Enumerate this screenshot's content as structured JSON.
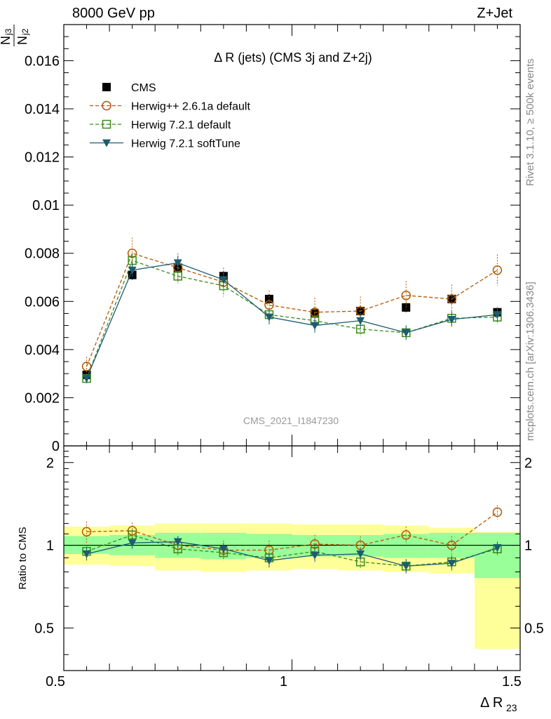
{
  "header": {
    "left": "8000 GeV pp",
    "right": "Z+Jet"
  },
  "side_labels": {
    "rivet": "Rivet 3.1.10, ≥ 500k events",
    "mcplots": "mcplots.cern.ch [arXiv:1306.3436]"
  },
  "chart_data": [
    {
      "panel": "main",
      "type": "scatter",
      "title": "Δ R (jets) (CMS 3j and Z+2j)",
      "ylabel": "N_j3 / N_j2",
      "watermark": "CMS_2021_I1847230",
      "xlim": [
        0.5,
        1.5
      ],
      "ylim": [
        0,
        0.0175
      ],
      "yticks": [
        "0",
        "0.002",
        "0.004",
        "0.006",
        "0.008",
        "0.01",
        "0.012",
        "0.014",
        "0.016"
      ],
      "ytick_values": [
        0,
        0.002,
        0.004,
        0.006,
        0.008,
        0.01,
        0.012,
        0.014,
        0.016
      ],
      "legend_position": "top-left",
      "x": [
        0.55,
        0.65,
        0.75,
        0.85,
        0.95,
        1.05,
        1.15,
        1.25,
        1.35,
        1.45
      ],
      "series": [
        {
          "name": "CMS",
          "marker": "square-filled",
          "color": "#000000",
          "line": "none",
          "values": [
            0.00295,
            0.0071,
            0.0074,
            0.00705,
            0.0061,
            0.0055,
            0.0056,
            0.00575,
            0.0061,
            0.00555
          ],
          "errors": [
            0.00015,
            0.0002,
            0.0002,
            0.0002,
            0.0002,
            0.0002,
            0.0002,
            0.0002,
            0.0002,
            0.0002
          ]
        },
        {
          "name": "Herwig++ 2.6.1a default",
          "marker": "circle-open",
          "color": "#b35900",
          "line": "dashed",
          "values": [
            0.0033,
            0.008,
            0.0074,
            0.0068,
            0.00585,
            0.00555,
            0.0056,
            0.00625,
            0.0061,
            0.0073
          ],
          "errors": [
            0.0004,
            0.00065,
            0.0006,
            0.0006,
            0.0006,
            0.0006,
            0.0006,
            0.0006,
            0.0006,
            0.00065
          ]
        },
        {
          "name": "Herwig 7.2.1 default",
          "marker": "square-open",
          "color": "#3a8a1a",
          "line": "dashed",
          "values": [
            0.0028,
            0.0077,
            0.00705,
            0.00665,
            0.00545,
            0.0052,
            0.00485,
            0.0047,
            0.0053,
            0.00535
          ],
          "errors": [
            0.0002,
            0.0003,
            0.0003,
            0.0003,
            0.0003,
            0.0003,
            0.0003,
            0.0003,
            0.0003,
            0.0003
          ]
        },
        {
          "name": "Herwig 7.2.1 softTune",
          "marker": "triangle-down-filled",
          "color": "#1d5c70",
          "line": "solid",
          "values": [
            0.0028,
            0.0073,
            0.0076,
            0.0069,
            0.00535,
            0.005,
            0.0052,
            0.0047,
            0.00525,
            0.00545
          ],
          "errors": [
            0.0002,
            0.0003,
            0.0003,
            0.0003,
            0.0003,
            0.0003,
            0.0003,
            0.0003,
            0.0003,
            0.0003
          ]
        }
      ]
    },
    {
      "panel": "ratio",
      "type": "scatter",
      "ylabel": "Ratio to CMS",
      "xlabel": "Δ R_23",
      "xlim": [
        0.5,
        1.5
      ],
      "ylim": [
        0.35,
        2.3
      ],
      "xticks": [
        "0.5",
        "1",
        "1.5"
      ],
      "xtick_values": [
        0.5,
        1,
        1.5
      ],
      "yticks": [
        "0.5",
        "1",
        "2"
      ],
      "ytick_values": [
        0.5,
        1,
        2
      ],
      "bins": [
        [
          0.5,
          0.6
        ],
        [
          0.6,
          0.7
        ],
        [
          0.7,
          0.8
        ],
        [
          0.8,
          0.9
        ],
        [
          0.9,
          1.0
        ],
        [
          1.0,
          1.1
        ],
        [
          1.1,
          1.2
        ],
        [
          1.2,
          1.3
        ],
        [
          1.3,
          1.4
        ],
        [
          1.4,
          1.5
        ]
      ],
      "band_inner": [
        [
          0.93,
          1.08
        ],
        [
          0.92,
          1.09
        ],
        [
          0.9,
          1.11
        ],
        [
          0.89,
          1.11
        ],
        [
          0.9,
          1.1
        ],
        [
          0.91,
          1.09
        ],
        [
          0.91,
          1.09
        ],
        [
          0.9,
          1.1
        ],
        [
          0.9,
          1.11
        ],
        [
          0.76,
          1.11
        ]
      ],
      "band_outer": [
        [
          0.85,
          1.17
        ],
        [
          0.84,
          1.18
        ],
        [
          0.81,
          1.2
        ],
        [
          0.8,
          1.2
        ],
        [
          0.81,
          1.2
        ],
        [
          0.82,
          1.19
        ],
        [
          0.81,
          1.19
        ],
        [
          0.8,
          1.18
        ],
        [
          0.79,
          1.16
        ],
        [
          0.42,
          1.12
        ]
      ],
      "x": [
        0.55,
        0.65,
        0.75,
        0.85,
        0.95,
        1.05,
        1.15,
        1.25,
        1.35,
        1.45
      ],
      "series": [
        {
          "name": "Herwig++ 2.6.1a default",
          "marker": "circle-open",
          "color": "#b35900",
          "line": "dashed",
          "values": [
            1.12,
            1.13,
            1.0,
            0.96,
            0.96,
            1.01,
            1.0,
            1.09,
            1.0,
            1.32
          ],
          "errors": [
            0.1,
            0.08,
            0.08,
            0.08,
            0.08,
            0.08,
            0.08,
            0.08,
            0.08,
            0.08
          ]
        },
        {
          "name": "Herwig 7.2.1 default",
          "marker": "square-open",
          "color": "#3a8a1a",
          "line": "dashed",
          "values": [
            0.95,
            1.09,
            0.97,
            0.94,
            0.9,
            0.95,
            0.87,
            0.84,
            0.87,
            0.97
          ],
          "errors": [
            0.05,
            0.05,
            0.05,
            0.05,
            0.05,
            0.05,
            0.05,
            0.05,
            0.05,
            0.05
          ]
        },
        {
          "name": "Herwig 7.2.1 softTune",
          "marker": "triangle-down-filled",
          "color": "#1d5c70",
          "line": "solid",
          "values": [
            0.93,
            1.02,
            1.03,
            0.97,
            0.88,
            0.92,
            0.93,
            0.84,
            0.86,
            0.98
          ],
          "errors": [
            0.05,
            0.05,
            0.05,
            0.05,
            0.05,
            0.05,
            0.05,
            0.05,
            0.05,
            0.05
          ]
        }
      ]
    }
  ],
  "colors": {
    "band_inner": "#99ff99",
    "band_outer": "#ffff99",
    "ratio_reference_line": "#000000",
    "watermark": "#999999"
  }
}
